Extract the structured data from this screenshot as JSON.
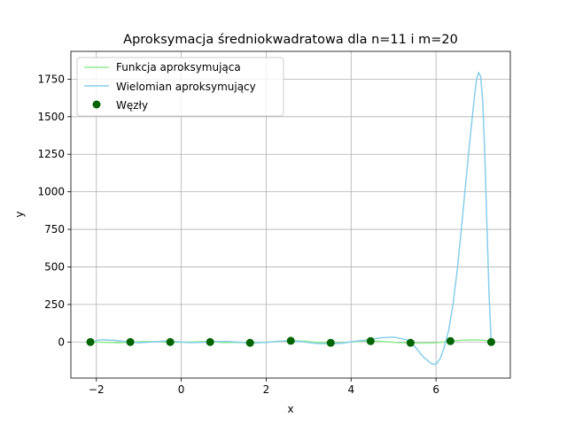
{
  "chart_data": {
    "type": "line",
    "title": "Aproksymacja średniokwadratowa dla n=11 i m=20",
    "xlabel": "x",
    "ylabel": "y",
    "xlim": [
      -2.6,
      7.75
    ],
    "ylim": [
      -240,
      1935
    ],
    "xticks": [
      -2,
      0,
      2,
      4,
      6
    ],
    "yticks": [
      0,
      250,
      500,
      750,
      1000,
      1250,
      1500,
      1750
    ],
    "grid": true,
    "legend_position": "top-left",
    "series": [
      {
        "name": "Funkcja aproksymująca",
        "kind": "line",
        "color": "#90ee90",
        "x": [
          -2.14,
          -1.8,
          -1.5,
          -1.2,
          -0.9,
          -0.6,
          -0.26,
          0.1,
          0.5,
          0.7,
          1.0,
          1.3,
          1.64,
          2.0,
          2.3,
          2.58,
          2.9,
          3.2,
          3.53,
          3.8,
          4.1,
          4.47,
          4.8,
          5.1,
          5.41,
          5.7,
          6.0,
          6.34,
          6.6,
          6.9,
          7.1,
          7.3
        ],
        "y": [
          0,
          -2,
          -5,
          -2,
          4,
          2,
          -3,
          -1,
          3,
          2,
          -4,
          -3,
          -5,
          -1,
          4,
          9,
          6,
          -3,
          -5,
          -4,
          2,
          8,
          3,
          -4,
          -6,
          -7,
          -6,
          5,
          12,
          14,
          12,
          5
        ]
      },
      {
        "name": "Wielomian aproksymujący",
        "kind": "line",
        "color": "#87ceeb",
        "x": [
          -2.14,
          -1.9,
          -1.6,
          -1.3,
          -1.0,
          -0.7,
          -0.4,
          -0.1,
          0.2,
          0.5,
          0.8,
          1.1,
          1.4,
          1.7,
          2.0,
          2.3,
          2.6,
          2.9,
          3.2,
          3.5,
          3.8,
          4.1,
          4.4,
          4.7,
          5.0,
          5.3,
          5.5,
          5.7,
          5.9,
          6.0,
          6.1,
          6.2,
          6.3,
          6.4,
          6.5,
          6.6,
          6.7,
          6.8,
          6.9,
          6.95,
          7.0,
          7.05,
          7.1,
          7.15,
          7.2,
          7.25,
          7.3
        ],
        "y": [
          0,
          15,
          12,
          2,
          -5,
          0,
          6,
          2,
          -4,
          -2,
          3,
          4,
          -2,
          -6,
          -3,
          5,
          8,
          0,
          -10,
          -12,
          -8,
          5,
          15,
          28,
          33,
          15,
          -30,
          -100,
          -145,
          -150,
          -110,
          -30,
          80,
          250,
          480,
          760,
          1060,
          1350,
          1620,
          1740,
          1795,
          1770,
          1600,
          1250,
          780,
          320,
          0
        ]
      },
      {
        "name": "Węzły",
        "kind": "scatter",
        "color": "#006400",
        "x": [
          -2.14,
          -1.2,
          -0.26,
          0.68,
          1.62,
          2.58,
          3.52,
          4.46,
          5.4,
          6.34,
          7.3
        ],
        "y": [
          0,
          0,
          0,
          0,
          -5,
          8,
          -5,
          6,
          -5,
          6,
          0
        ]
      }
    ]
  }
}
